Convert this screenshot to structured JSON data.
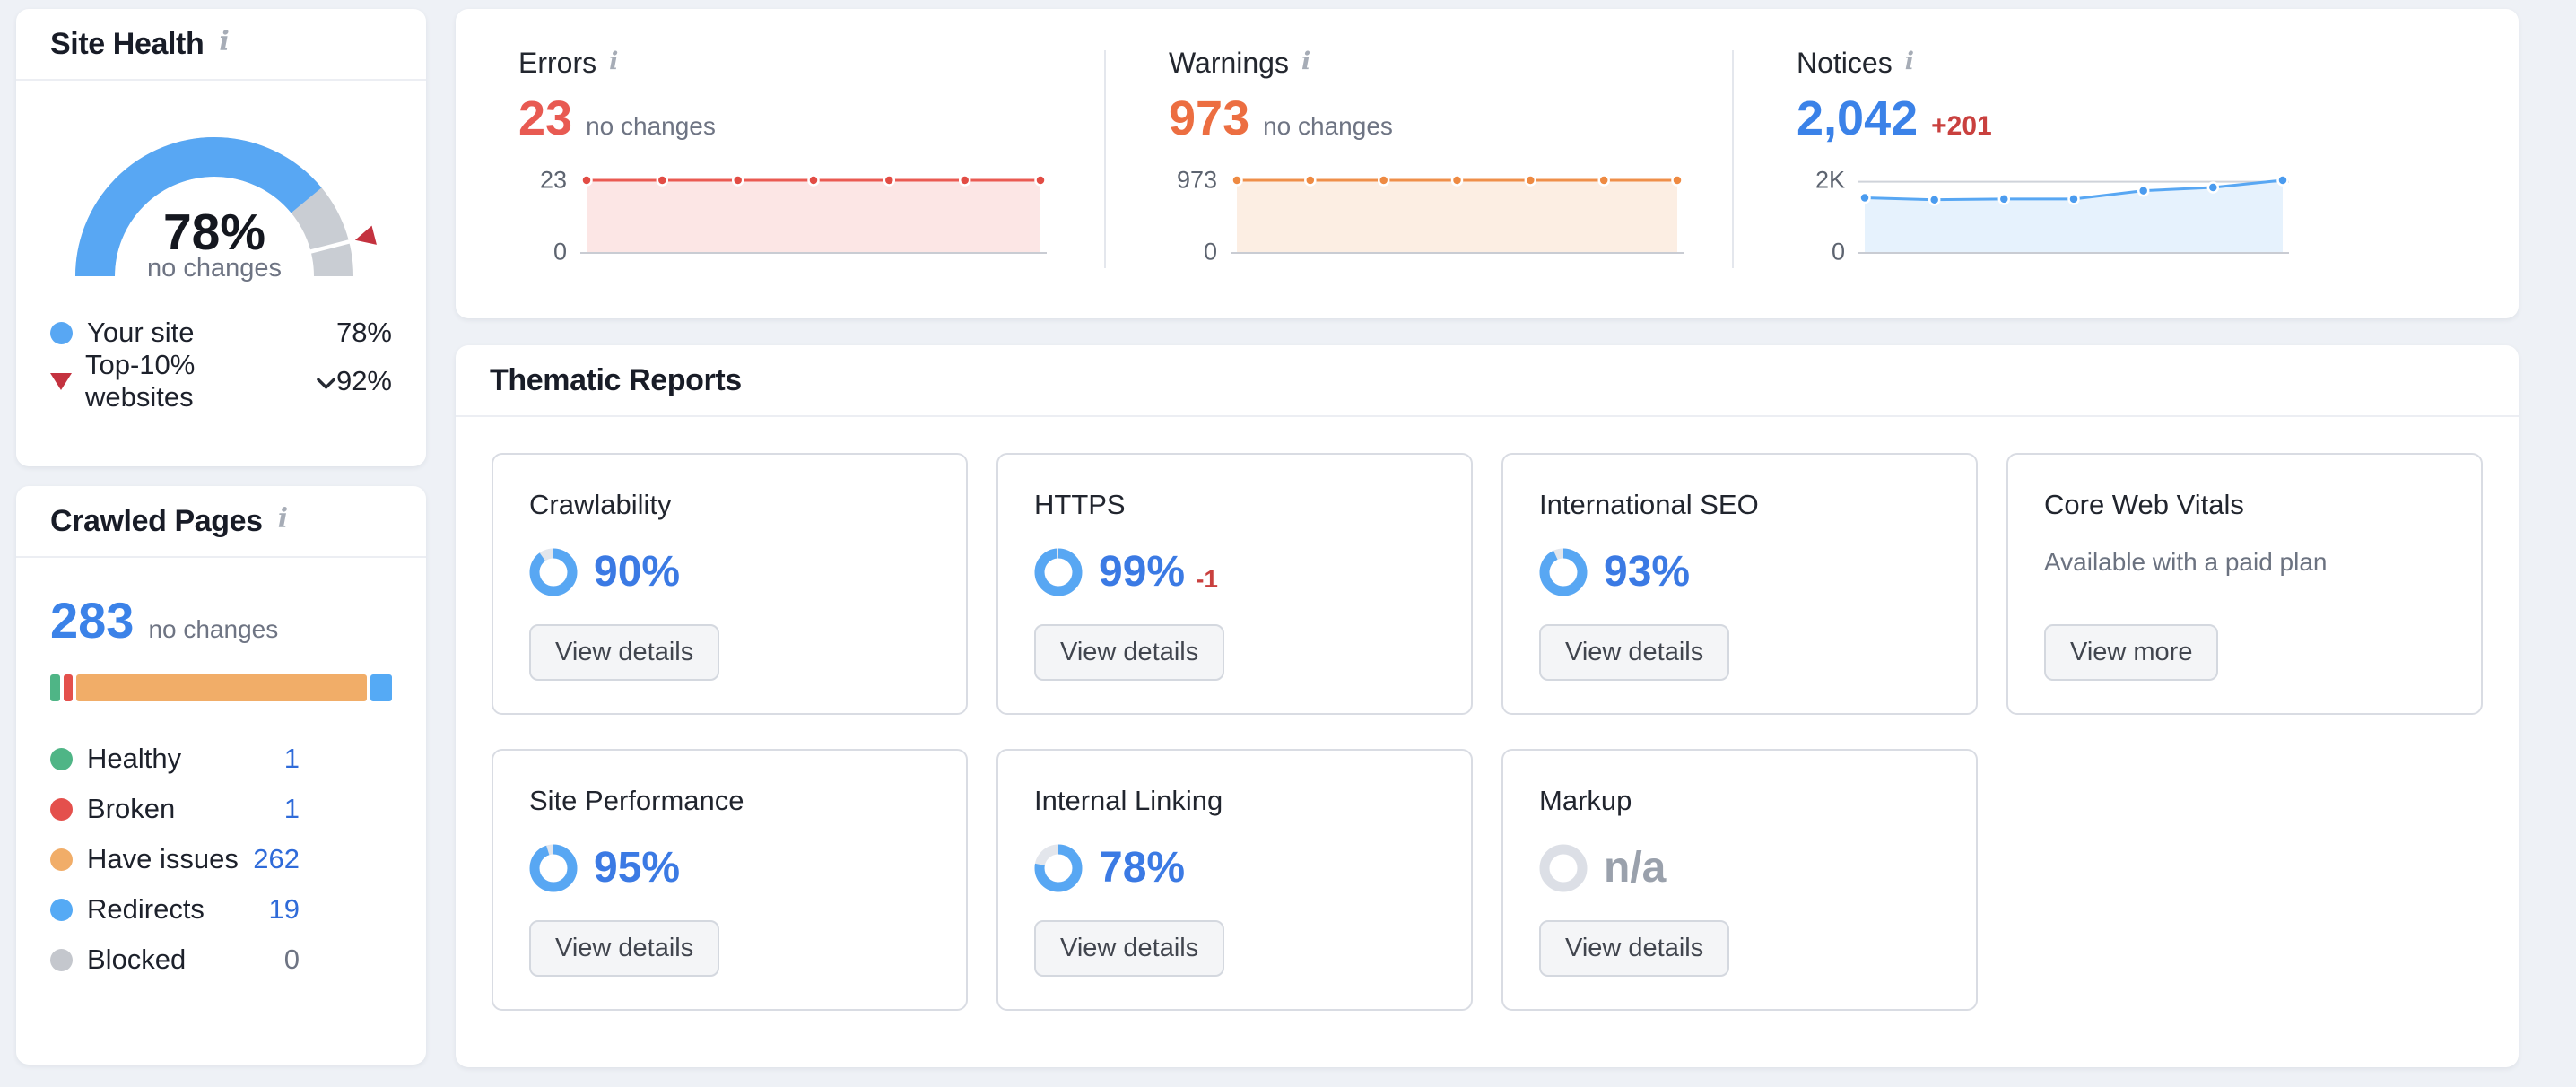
{
  "site_health": {
    "title": "Site Health",
    "gauge": {
      "value": 78,
      "value_label": "78%",
      "change_label": "no changes",
      "benchmark": 92,
      "color": "#58a7f3",
      "rest_color": "#c9cdd3",
      "marker_color": "#c4323f"
    },
    "legend": [
      {
        "label": "Your site",
        "value": "78%"
      },
      {
        "label": "Top-10% websites",
        "value": "92%"
      }
    ]
  },
  "crawled_pages": {
    "title": "Crawled Pages",
    "total": "283",
    "change_label": "no changes",
    "segments": [
      {
        "label": "Healthy",
        "value": "1",
        "color": "#4fb586",
        "value_color": "#2f6bd9",
        "bar_pct": 2.8
      },
      {
        "label": "Broken",
        "value": "1",
        "color": "#e4504c",
        "value_color": "#2f6bd9",
        "bar_pct": 2.8
      },
      {
        "label": "Have issues",
        "value": "262",
        "color": "#f1ad68",
        "value_color": "#2f6bd9",
        "bar_pct": 0,
        "bar_flex": true
      },
      {
        "label": "Redirects",
        "value": "19",
        "color": "#55aaf5",
        "value_color": "#2f6bd9",
        "bar_pct": 6.3
      },
      {
        "label": "Blocked",
        "value": "0",
        "color": "#c4c7cd",
        "value_color": "#6e7483",
        "bar_pct": 0
      }
    ]
  },
  "summary": {
    "sections": [
      {
        "title": "Errors",
        "value": "23",
        "value_color": "#e85a52",
        "change_label": "no changes",
        "chart": {
          "values": [
            23,
            23,
            23,
            23,
            23,
            23,
            23
          ],
          "ymax": 23,
          "ymax_label": "23",
          "ymin_label": "0",
          "line": "#ea5a52",
          "fill": "#ea5a52",
          "dot": "#e24c44"
        }
      },
      {
        "title": "Warnings",
        "value": "973",
        "value_color": "#ec6e41",
        "change_label": "no changes",
        "chart": {
          "values": [
            973,
            973,
            973,
            973,
            973,
            973,
            973
          ],
          "ymax": 973,
          "ymax_label": "973",
          "ymin_label": "0",
          "line": "#ef8f4a",
          "fill": "#ee8c42",
          "dot": "#ee8a42"
        }
      },
      {
        "title": "Notices",
        "value": "2,042",
        "value_color": "#3b82e8",
        "delta": "+201",
        "chart": {
          "values": [
            1550,
            1495,
            1515,
            1515,
            1750,
            1841,
            2042
          ],
          "ymax": 2042,
          "gridline": 2000,
          "ymax_label": "2K",
          "ymin_label": "0",
          "line": "#58a7f3",
          "fill": "#58a7f3",
          "dot": "#4a9bef"
        }
      }
    ]
  },
  "thematic": {
    "title": "Thematic Reports",
    "cards": [
      {
        "title": "Crawlability",
        "value_label": "90%",
        "value_color": "#3b7ae4",
        "button": "View details",
        "donut": {
          "pct": 90,
          "ring": "#58a7f3",
          "track": "#e3e6ec"
        }
      },
      {
        "title": "HTTPS",
        "value_label": "99%",
        "value_color": "#3b7ae4",
        "delta": "-1",
        "button": "View details",
        "donut": {
          "pct": 99,
          "ring": "#58a7f3",
          "track": "#e3e6ec"
        }
      },
      {
        "title": "International SEO",
        "value_label": "93%",
        "value_color": "#3b7ae4",
        "button": "View details",
        "donut": {
          "pct": 93,
          "ring": "#58a7f3",
          "track": "#e3e6ec"
        }
      },
      {
        "title": "Core Web Vitals",
        "note": "Available with a paid plan",
        "button": "View more"
      },
      {
        "title": "Site Performance",
        "value_label": "95%",
        "value_color": "#3b7ae4",
        "button": "View details",
        "donut": {
          "pct": 95,
          "ring": "#58a7f3",
          "track": "#e3e6ec"
        }
      },
      {
        "title": "Internal Linking",
        "value_label": "78%",
        "value_color": "#3b7ae4",
        "button": "View details",
        "donut": {
          "pct": 78,
          "ring": "#58a7f3",
          "track": "#e3e6ec"
        }
      },
      {
        "title": "Markup",
        "value_label": "n/a",
        "value_color": "#9aa1ac",
        "button": "View details",
        "donut": {
          "pct": 0,
          "ring": "#58a7f3",
          "track": "#dcdfe6"
        }
      }
    ]
  },
  "chart_data": [
    {
      "type": "pie",
      "subtype": "gauge",
      "title": "Site Health",
      "value": 78,
      "benchmark_top10": 92,
      "unit": "%",
      "note": "no changes"
    },
    {
      "type": "bar",
      "subtype": "stacked",
      "title": "Crawled Pages",
      "total": 283,
      "categories": [
        "Healthy",
        "Broken",
        "Have issues",
        "Redirects",
        "Blocked"
      ],
      "values": [
        1,
        1,
        262,
        19,
        0
      ]
    },
    {
      "type": "area",
      "title": "Errors",
      "x": [
        1,
        2,
        3,
        4,
        5,
        6,
        7
      ],
      "values": [
        23,
        23,
        23,
        23,
        23,
        23,
        23
      ],
      "ylim": [
        0,
        23
      ],
      "yticks": [
        "0",
        "23"
      ],
      "note": "no changes"
    },
    {
      "type": "area",
      "title": "Warnings",
      "x": [
        1,
        2,
        3,
        4,
        5,
        6,
        7
      ],
      "values": [
        973,
        973,
        973,
        973,
        973,
        973,
        973
      ],
      "ylim": [
        0,
        973
      ],
      "yticks": [
        "0",
        "973"
      ],
      "note": "no changes"
    },
    {
      "type": "area",
      "title": "Notices",
      "x": [
        1,
        2,
        3,
        4,
        5,
        6,
        7
      ],
      "values": [
        1550,
        1495,
        1515,
        1515,
        1750,
        1841,
        2042
      ],
      "ylim": [
        0,
        2042
      ],
      "yticks": [
        "0",
        "2K"
      ],
      "gridline": 2000,
      "note": "+201"
    },
    {
      "type": "pie",
      "subtype": "donut-scores",
      "title": "Thematic Reports",
      "categories": [
        "Crawlability",
        "HTTPS",
        "International SEO",
        "Site Performance",
        "Internal Linking",
        "Markup"
      ],
      "values": [
        90,
        99,
        93,
        95,
        78,
        null
      ]
    }
  ]
}
